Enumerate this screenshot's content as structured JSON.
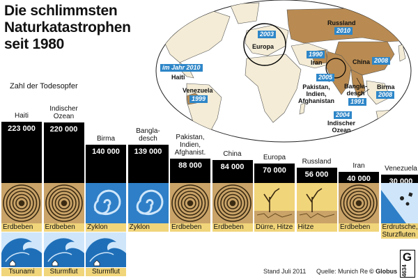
{
  "chart_data": {
    "type": "bar",
    "title_lines": [
      "Die schlimmsten",
      "Naturkatastrophen",
      "seit 1980"
    ],
    "ylabel": "Zahl der Todesopfer",
    "categories": [
      [
        "Haiti"
      ],
      [
        "Indischer",
        "Ozean"
      ],
      [
        "Birma"
      ],
      [
        "Bangla-",
        "desch"
      ],
      [
        "Pakistan,",
        "Indien,",
        "Afghanist."
      ],
      [
        "China"
      ],
      [
        "Europa"
      ],
      [
        "Russland"
      ],
      [
        "Iran"
      ],
      [
        "Venezuela"
      ]
    ],
    "values": [
      223000,
      220000,
      140000,
      139000,
      88000,
      84000,
      70000,
      56000,
      40000,
      30000
    ],
    "value_labels": [
      "223 000",
      "220 000",
      "140 000",
      "139 000",
      "88 000",
      "84 000",
      "70 000",
      "56 000",
      "40 000",
      "30 000"
    ],
    "causes": [
      [
        "Erdbeben"
      ],
      [
        "Erdbeben"
      ],
      [
        "Zyklon"
      ],
      [
        "Zyklon"
      ],
      [
        "Erdbeben"
      ],
      [
        "Erdbeben"
      ],
      [
        "Dürre, Hitze"
      ],
      [
        "Hitze"
      ],
      [
        "Erdbeben"
      ],
      [
        "Erdrutsche,",
        "Sturzfluten"
      ]
    ],
    "cause_icons": [
      "earthquake-icon",
      "earthquake-icon",
      "cyclone-icon",
      "cyclone-icon",
      "earthquake-icon",
      "earthquake-icon",
      "drought-icon",
      "drought-icon",
      "earthquake-icon",
      "landslide-icon"
    ],
    "secondary_causes": [
      "Tsunami",
      "Sturmflut",
      "Sturmflut",
      "",
      "",
      "",
      "",
      "",
      "",
      ""
    ],
    "ylim": [
      0,
      223000
    ]
  },
  "map": {
    "labels": {
      "europa": "Europa",
      "russland": "Russland",
      "haiti": "Haiti",
      "venezuela": "Venezuela",
      "iran": "Iran",
      "china": "China",
      "pakistan": [
        "Pakistan,",
        "Indien,",
        "Afghanistan"
      ],
      "bangladesch": [
        "Bangla-",
        "desch"
      ],
      "birma": "Birma",
      "indischer_ozean": [
        "Indischer",
        "Ozean"
      ]
    },
    "years": {
      "europa": "2003",
      "russland": "2010",
      "haiti": "im Jahr 2010",
      "venezuela": "1999",
      "iran": "1990",
      "pakistan": "2005",
      "china": "2008",
      "bangladesch": "1991",
      "birma": "2008",
      "indischer_ozean": "2004"
    }
  },
  "footer": {
    "stand": "Stand Juli 2011",
    "quelle": "Quelle: Munich Re",
    "copyright": "© Globus",
    "logo_letter": "G",
    "logo_number": "4634"
  },
  "colors": {
    "bar": "#000000",
    "cause_label": "#f1d57a",
    "tile_bg": "#c9a368",
    "year_box": "#2e86c8",
    "affected_land": "#b98b52",
    "water_tile": "#2e7fc7"
  }
}
